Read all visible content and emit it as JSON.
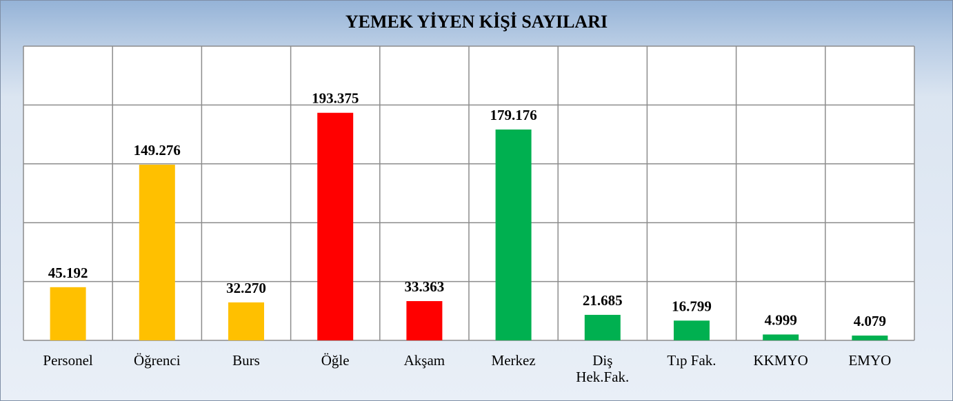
{
  "chart_data": {
    "type": "bar",
    "title": "YEMEK YİYEN KİŞİ SAYILARI",
    "categories": [
      "Personel",
      "Öğrenci",
      "Burs",
      "Öğle",
      "Akşam",
      "Merkez",
      "Diş Hek.Fak.",
      "Tıp Fak.",
      "KKMYO",
      "EMYO"
    ],
    "values": [
      45192,
      149276,
      32270,
      193375,
      33363,
      179176,
      21685,
      16799,
      4999,
      4079
    ],
    "value_labels": [
      "45.192",
      "149.276",
      "32.270",
      "193.375",
      "33.363",
      "179.176",
      "21.685",
      "16.799",
      "4.999",
      "4.079"
    ],
    "colors": [
      "#ffc000",
      "#ffc000",
      "#ffc000",
      "#ff0000",
      "#ff0000",
      "#00b050",
      "#00b050",
      "#00b050",
      "#00b050",
      "#00b050"
    ],
    "ylim": [
      0,
      250000
    ],
    "yticks": [
      0,
      50000,
      100000,
      150000,
      200000,
      250000
    ],
    "grid": true
  }
}
